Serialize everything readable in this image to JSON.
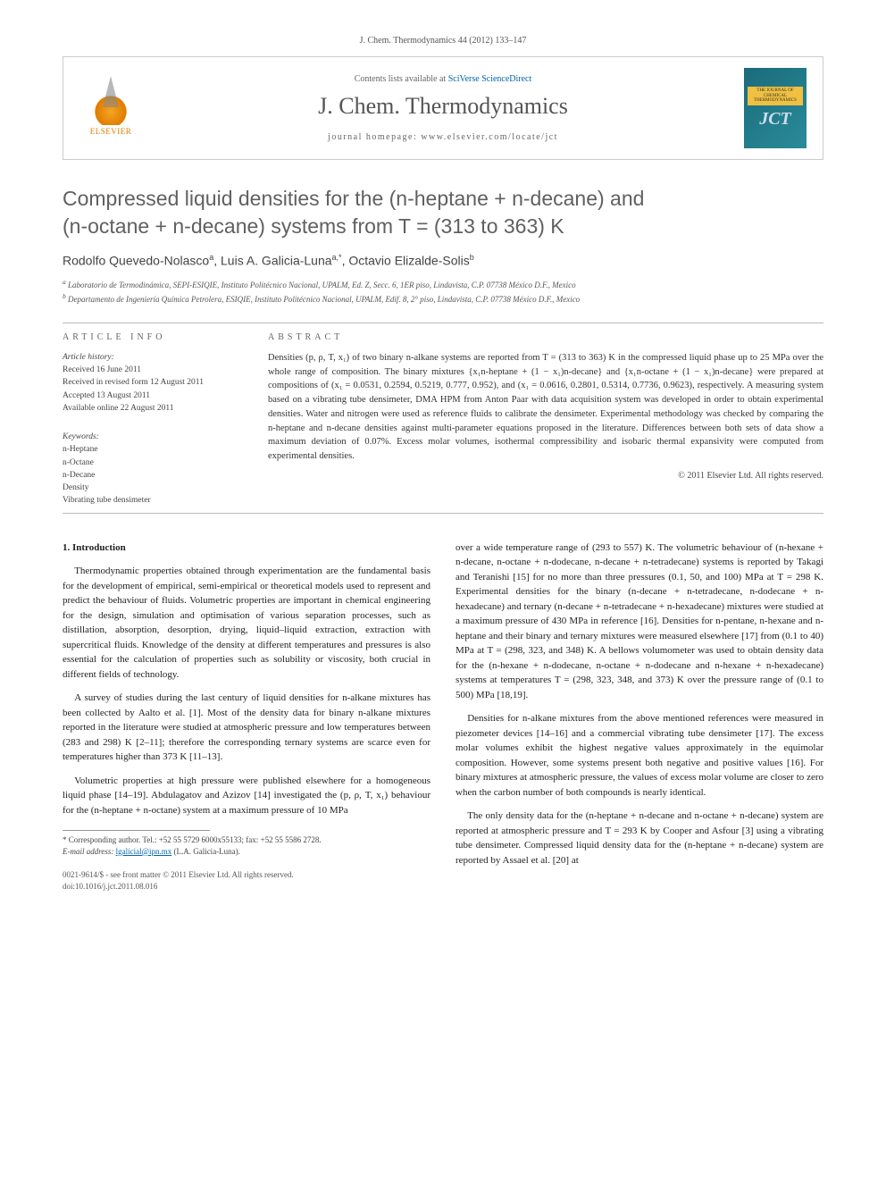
{
  "header": {
    "citation": "J. Chem. Thermodynamics 44 (2012) 133–147"
  },
  "banner": {
    "publisher_label": "ELSEVIER",
    "contents_prefix": "Contents lists available at ",
    "contents_link": "SciVerse ScienceDirect",
    "journal_name": "J. Chem. Thermodynamics",
    "homepage_prefix": "journal homepage: ",
    "homepage_url": "www.elsevier.com/locate/jct",
    "cover_title": "THE JOURNAL OF CHEMICAL THERMODYNAMICS",
    "cover_logo": "JCT"
  },
  "article": {
    "title_line1": "Compressed liquid densities for the (n-heptane + n-decane) and",
    "title_line2": "(n-octane + n-decane) systems from T = (313 to 363) K",
    "authors_html": "Rodolfo Quevedo-Nolasco",
    "author1": "Rodolfo Quevedo-Nolasco",
    "author1_sup": "a",
    "author2": "Luis A. Galicia-Luna",
    "author2_sup": "a,*",
    "author3": "Octavio Elizalde-Solis",
    "author3_sup": "b",
    "affil_a": "Laboratorio de Termodinámica, SEPI-ESIQIE, Instituto Politécnico Nacional, UPALM, Ed. Z, Secc. 6, 1ER piso, Lindavista, C.P. 07738 México D.F., Mexico",
    "affil_b": "Departamento de Ingeniería Química Petrolera, ESIQIE, Instituto Politécnico Nacional, UPALM, Edif. 8, 2° piso, Lindavista, C.P. 07738 México D.F., Mexico"
  },
  "article_info": {
    "label": "ARTICLE INFO",
    "history_label": "Article history:",
    "received": "Received 16 June 2011",
    "revised": "Received in revised form 12 August 2011",
    "accepted": "Accepted 13 August 2011",
    "online": "Available online 22 August 2011",
    "keywords_label": "Keywords:",
    "keywords": [
      "n-Heptane",
      "n-Octane",
      "n-Decane",
      "Density",
      "Vibrating tube densimeter"
    ]
  },
  "abstract": {
    "label": "ABSTRACT",
    "text": "Densities (p, ρ, T, x₁) of two binary n-alkane systems are reported from T = (313 to 363) K in the compressed liquid phase up to 25 MPa over the whole range of composition. The binary mixtures {x₁n-heptane + (1 − x₁)n-decane} and {x₁n-octane + (1 − x₁)n-decane} were prepared at compositions of (x₁ = 0.0531, 0.2594, 0.5219, 0.777, 0.952), and (x₁ = 0.0616, 0.2801, 0.5314, 0.7736, 0.9623), respectively. A measuring system based on a vibrating tube densimeter, DMA HPM from Anton Paar with data acquisition system was developed in order to obtain experimental densities. Water and nitrogen were used as reference fluids to calibrate the densimeter. Experimental methodology was checked by comparing the n-heptane and n-decane densities against multi-parameter equations proposed in the literature. Differences between both sets of data show a maximum deviation of 0.07%. Excess molar volumes, isothermal compressibility and isobaric thermal expansivity were computed from experimental densities.",
    "copyright": "© 2011 Elsevier Ltd. All rights reserved."
  },
  "body": {
    "section1_title": "1. Introduction",
    "col1_p1": "Thermodynamic properties obtained through experimentation are the fundamental basis for the development of empirical, semi-empirical or theoretical models used to represent and predict the behaviour of fluids. Volumetric properties are important in chemical engineering for the design, simulation and optimisation of various separation processes, such as distillation, absorption, desorption, drying, liquid–liquid extraction, extraction with supercritical fluids. Knowledge of the density at different temperatures and pressures is also essential for the calculation of properties such as solubility or viscosity, both crucial in different fields of technology.",
    "col1_p2": "A survey of studies during the last century of liquid densities for n-alkane mixtures has been collected by Aalto et al. [1]. Most of the density data for binary n-alkane mixtures reported in the literature were studied at atmospheric pressure and low temperatures between (283 and 298) K [2–11]; therefore the corresponding ternary systems are scarce even for temperatures higher than 373 K [11–13].",
    "col1_p3": "Volumetric properties at high pressure were published elsewhere for a homogeneous liquid phase [14–19]. Abdulagatov and Azizov [14] investigated the (p, ρ, T, x₁) behaviour for the (n-heptane + n-octane) system at a maximum pressure of 10 MPa",
    "col2_p1": "over a wide temperature range of (293 to 557) K. The volumetric behaviour of (n-hexane + n-decane, n-octane + n-dodecane, n-decane + n-tetradecane) systems is reported by Takagi and Teranishi [15] for no more than three pressures (0.1, 50, and 100) MPa at T = 298 K. Experimental densities for the binary (n-decane + n-tetradecane, n-dodecane + n-hexadecane) and ternary (n-decane + n-tetradecane + n-hexadecane) mixtures were studied at a maximum pressure of 430 MPa in reference [16]. Densities for n-pentane, n-hexane and n-heptane and their binary and ternary mixtures were measured elsewhere [17] from (0.1 to 40) MPa at T = (298, 323, and 348) K. A bellows volumometer was used to obtain density data for the (n-hexane + n-dodecane, n-octane + n-dodecane and n-hexane + n-hexadecane) systems at temperatures T = (298, 323, 348, and 373) K over the pressure range of (0.1 to 500) MPa [18,19].",
    "col2_p2": "Densities for n-alkane mixtures from the above mentioned references were measured in piezometer devices [14–16] and a commercial vibrating tube densimeter [17]. The excess molar volumes exhibit the highest negative values approximately in the equimolar composition. However, some systems present both negative and positive values [16]. For binary mixtures at atmospheric pressure, the values of excess molar volume are closer to zero when the carbon number of both compounds is nearly identical.",
    "col2_p3": "The only density data for the (n-heptane + n-decane and n-octane + n-decane) system are reported at atmospheric pressure and T = 293 K by Cooper and Asfour [3] using a vibrating tube densimeter. Compressed liquid density data for the (n-heptane + n-decane) system are reported by Assael et al. [20] at"
  },
  "footnote": {
    "corresponding": "* Corresponding author. Tel.: +52 55 5729 6000x55133; fax: +52 55 5586 2728.",
    "email_label": "E-mail address: ",
    "email": "lgalicial@ipn.mx",
    "email_suffix": " (L.A. Galicia-Luna)."
  },
  "footer": {
    "issn": "0021-9614/$ - see front matter © 2011 Elsevier Ltd. All rights reserved.",
    "doi": "doi:10.1016/j.jct.2011.08.016"
  }
}
